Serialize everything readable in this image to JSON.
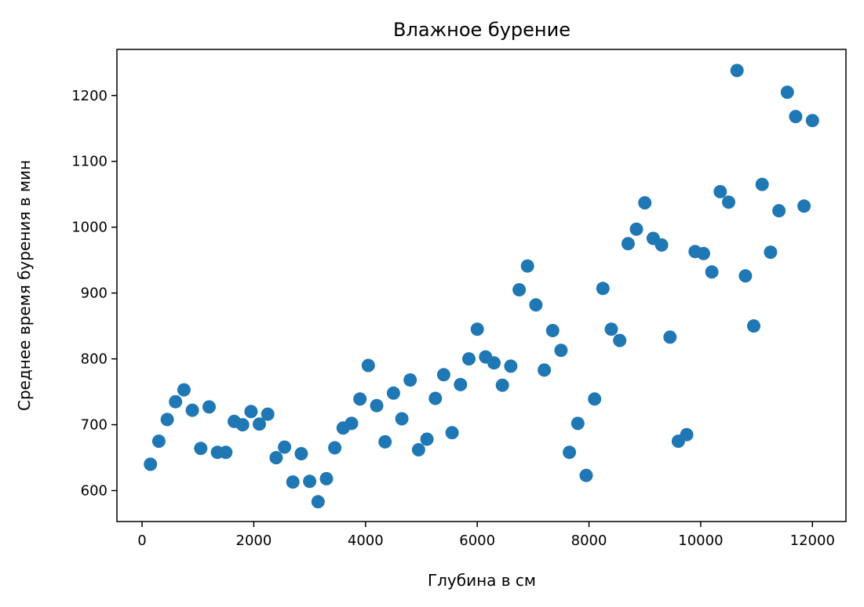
{
  "chart_data": {
    "type": "scatter",
    "title": "Влажное бурение",
    "xlabel": "Глубина в см",
    "ylabel": "Среднее время бурения в мин",
    "xlim": [
      -450,
      12600
    ],
    "ylim": [
      553,
      1270
    ],
    "xticks": [
      0,
      2000,
      4000,
      6000,
      8000,
      10000,
      12000
    ],
    "yticks": [
      600,
      700,
      800,
      900,
      1000,
      1100,
      1200
    ],
    "grid": false,
    "color": "#1f77b4",
    "x": [
      150,
      300,
      450,
      600,
      750,
      900,
      1050,
      1200,
      1350,
      1500,
      1650,
      1800,
      1950,
      2100,
      2250,
      2400,
      2550,
      2700,
      2850,
      3000,
      3150,
      3300,
      3450,
      3600,
      3750,
      3900,
      4050,
      4200,
      4350,
      4500,
      4650,
      4800,
      4950,
      5100,
      5250,
      5400,
      5550,
      5700,
      5850,
      6000,
      6150,
      6300,
      6450,
      6600,
      6750,
      6900,
      7050,
      7200,
      7350,
      7500,
      7650,
      7800,
      7950,
      8100,
      8250,
      8400,
      8550,
      8700,
      8850,
      9000,
      9150,
      9300,
      9450,
      9600,
      9750,
      9900,
      10050,
      10200,
      10350,
      10500,
      10650,
      10800,
      10950,
      11100,
      11250,
      11400,
      11550,
      11700,
      11850,
      12000
    ],
    "y": [
      640,
      675,
      708,
      735,
      753,
      722,
      664,
      727,
      658,
      658,
      705,
      700,
      720,
      701,
      716,
      650,
      666,
      613,
      656,
      614,
      583,
      618,
      665,
      695,
      702,
      739,
      790,
      729,
      674,
      748,
      709,
      768,
      662,
      678,
      740,
      776,
      688,
      761,
      800,
      845,
      803,
      794,
      760,
      789,
      905,
      941,
      882,
      783,
      843,
      813,
      658,
      702,
      623,
      739,
      907,
      845,
      828,
      975,
      997,
      1037,
      983,
      973,
      833,
      675,
      685,
      963,
      960,
      932,
      1054,
      1038,
      1238,
      926,
      850,
      1065,
      962,
      1025,
      1205,
      1168,
      1032,
      1162
    ]
  }
}
